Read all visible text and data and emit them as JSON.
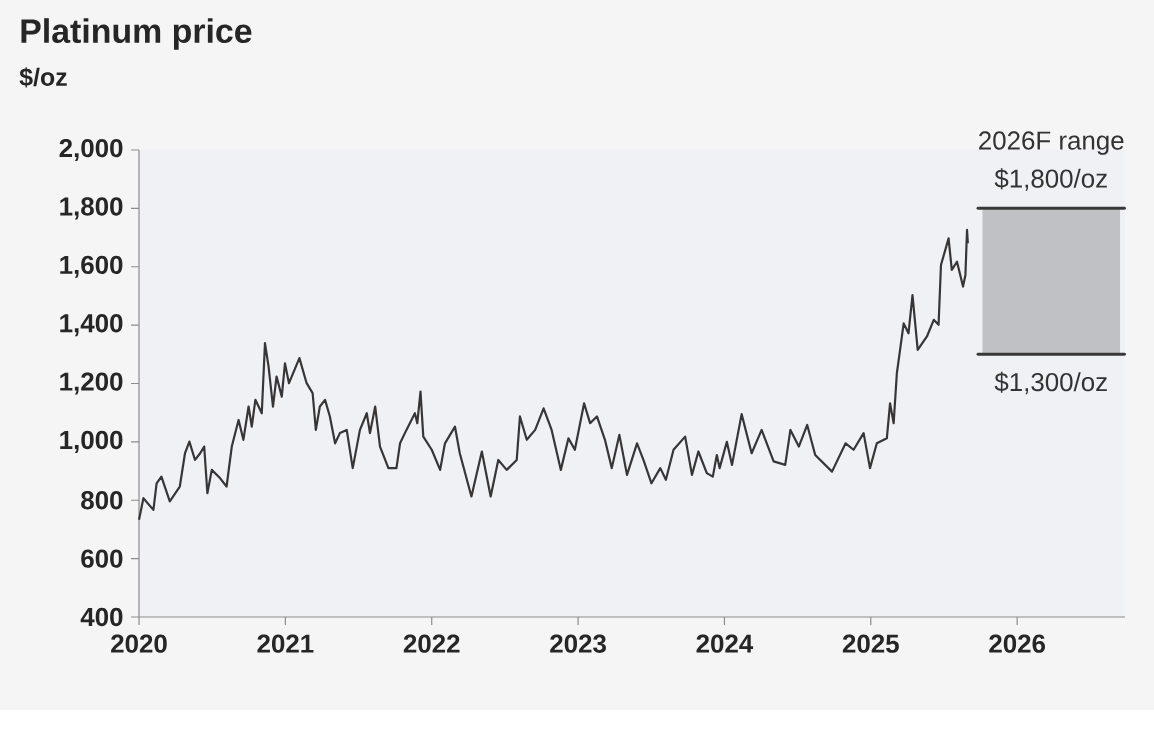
{
  "chart_data": {
    "type": "line",
    "title": "Platinum price",
    "ylabel": "$/oz",
    "xlim": [
      "2020-01-01",
      "2026-09-27"
    ],
    "xticks": [
      "2020",
      "2021",
      "2022",
      "2023",
      "2024",
      "2025",
      "2026"
    ],
    "ylim": [
      400,
      2000
    ],
    "yticks": [
      {
        "value": 400,
        "label": "400"
      },
      {
        "value": 600,
        "label": "600"
      },
      {
        "value": 800,
        "label": "800"
      },
      {
        "value": 1000,
        "label": "1,000"
      },
      {
        "value": 1200,
        "label": "1,200"
      },
      {
        "value": 1400,
        "label": "1,400"
      },
      {
        "value": 1600,
        "label": "1,600"
      },
      {
        "value": 1800,
        "label": "1,800"
      },
      {
        "value": 2000,
        "label": "2,000"
      }
    ],
    "grid": false,
    "series": [
      {
        "color": "#383536",
        "x": [
          "2020-01-01",
          "2020-01-12",
          "2020-02-06",
          "2020-02-14",
          "2020-02-26",
          "2020-03-18",
          "2020-04-12",
          "2020-04-25",
          "2020-05-06",
          "2020-05-20",
          "2020-06-02",
          "2020-06-12",
          "2020-06-20",
          "2020-07-01",
          "2020-07-22",
          "2020-08-07",
          "2020-08-20",
          "2020-09-06",
          "2020-09-18",
          "2020-10-01",
          "2020-10-09",
          "2020-10-18",
          "2020-11-03",
          "2020-11-11",
          "2020-11-20",
          "2020-12-01",
          "2020-12-10",
          "2020-12-23",
          "2020-12-31",
          "2021-01-10",
          "2021-02-05",
          "2021-02-23",
          "2021-03-10",
          "2021-03-18",
          "2021-03-28",
          "2021-04-10",
          "2021-04-22",
          "2021-05-05",
          "2021-05-17",
          "2021-06-03",
          "2021-06-18",
          "2021-07-06",
          "2021-07-23",
          "2021-07-31",
          "2021-08-13",
          "2021-08-25",
          "2021-09-15",
          "2021-10-05",
          "2021-10-14",
          "2021-10-30",
          "2021-11-20",
          "2021-11-26",
          "2021-12-04",
          "2021-12-11",
          "2022-01-01",
          "2022-01-22",
          "2022-02-03",
          "2022-02-28",
          "2022-03-12",
          "2022-04-10",
          "2022-05-06",
          "2022-05-28",
          "2022-06-16",
          "2022-07-07",
          "2022-08-01",
          "2022-08-09",
          "2022-08-26",
          "2022-09-16",
          "2022-10-07",
          "2022-10-27",
          "2022-11-19",
          "2022-12-08",
          "2022-12-24",
          "2023-01-16",
          "2023-01-31",
          "2023-02-17",
          "2023-03-09",
          "2023-03-26",
          "2023-04-14",
          "2023-05-03",
          "2023-05-28",
          "2023-06-13",
          "2023-07-03",
          "2023-07-25",
          "2023-08-08",
          "2023-08-27",
          "2023-09-25",
          "2023-10-12",
          "2023-10-28",
          "2023-11-18",
          "2023-12-03",
          "2023-12-13",
          "2023-12-20",
          "2024-01-07",
          "2024-01-20",
          "2024-02-13",
          "2024-03-09",
          "2024-04-03",
          "2024-05-03",
          "2024-06-01",
          "2024-06-14",
          "2024-07-05",
          "2024-07-26",
          "2024-08-15",
          "2024-09-26",
          "2024-10-30",
          "2024-11-19",
          "2024-12-14",
          "2024-12-30",
          "2025-01-16",
          "2025-02-10",
          "2025-02-18",
          "2025-02-27",
          "2025-03-07",
          "2025-03-15",
          "2025-03-24",
          "2025-04-05",
          "2025-04-15",
          "2025-04-28",
          "2025-05-21",
          "2025-06-07",
          "2025-06-19",
          "2025-06-25",
          "2025-07-14",
          "2025-07-22",
          "2025-08-04",
          "2025-08-19",
          "2025-08-25",
          "2025-08-29",
          "2025-08-31"
        ],
        "values": [
          733,
          807,
          767,
          858,
          881,
          796,
          847,
          961,
          1001,
          938,
          961,
          984,
          824,
          904,
          875,
          847,
          984,
          1075,
          1007,
          1121,
          1052,
          1144,
          1098,
          1338,
          1258,
          1121,
          1224,
          1155,
          1269,
          1201,
          1287,
          1201,
          1167,
          1041,
          1121,
          1144,
          1087,
          995,
          1030,
          1041,
          910,
          1041,
          1098,
          1030,
          1121,
          984,
          910,
          910,
          995,
          1041,
          1098,
          1064,
          1172,
          1018,
          973,
          904,
          995,
          1052,
          961,
          813,
          967,
          813,
          938,
          904,
          938,
          1087,
          1007,
          1041,
          1115,
          1041,
          904,
          1012,
          973,
          1132,
          1064,
          1087,
          1007,
          910,
          1024,
          887,
          995,
          938,
          858,
          910,
          870,
          973,
          1018,
          887,
          967,
          893,
          881,
          955,
          910,
          1000,
          921,
          1095,
          961,
          1041,
          933,
          921,
          1041,
          984,
          1058,
          955,
          898,
          995,
          973,
          1030,
          910,
          995,
          1012,
          1132,
          1064,
          1235,
          1315,
          1406,
          1372,
          1503,
          1315,
          1361,
          1418,
          1401,
          1606,
          1697,
          1589,
          1617,
          1532,
          1572,
          1726,
          1680
        ]
      },
      {
        "type": "bar",
        "name": "2026F range",
        "color": "#c0c1c4",
        "x": [
          "2026-03-27"
        ],
        "base": [
          1300
        ],
        "values": [
          500
        ]
      }
    ],
    "annotations": [
      {
        "text": "$1,800/oz",
        "x": "2026-03-27",
        "y": 1800
      },
      {
        "text": "$1,300/oz",
        "x": "2026-03-27",
        "y": 1300
      }
    ]
  }
}
